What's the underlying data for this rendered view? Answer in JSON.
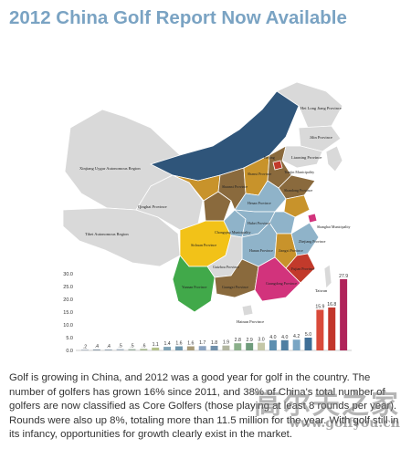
{
  "article": {
    "title": "2012 China Golf Report Now Available",
    "body": "Golf is growing in China, and 2012 was a good year for golf in the country. The number of golfers has grown 16% since 2011, and 38% of China's total number of golfers are now classified as Core Golfers (those playing at least 8 rounds per year). Rounds were also up 8%, totaling more than 11.5 million for the year. With golf still in its infancy, opportunities for growth clearly exist in the market."
  },
  "map": {
    "labels": {
      "heilongjiang": "Hei Long Jiang Province",
      "jilin": "Jilin Province",
      "liaoning": "Liaoning Province",
      "xinjiang": "Xinjiang Uygur Autonomous Region",
      "tibet": "Tibet Autonomous Region",
      "qinghai": "Qinghai Province",
      "beijing": "Beijing",
      "tianjin": "Tianjin Municipality",
      "shaanxi": "Shaanxi Province",
      "shanxi": "Shanxi Province",
      "shandong": "Shandong Province",
      "henan": "Henan Province",
      "shanghai": "Shanghai Municipality",
      "sichuan": "Sichuan Province",
      "chongqing": "Chongqing Municipality",
      "hubei": "Hubei Province",
      "hunan": "Hunan Province",
      "guizhou": "Guizhou Province",
      "yunnan": "Yunnan Province",
      "jiangxi": "Jiangxi Province",
      "fujian": "Fujian Province",
      "zhejiang": "Zhejiang Province",
      "guangxi": "Guangxi Province",
      "guangdong": "Guangdong Province",
      "taiwan": "Taiwan",
      "hainan": "Hainan Province"
    },
    "colors": {
      "land": "#d9d9d9",
      "northeast": "#2f557a",
      "north": "#c8932b",
      "central": "#8a6a3d",
      "southwest": "#f2c218",
      "south": "#41a94a",
      "guangdong": "#d2337c",
      "southeast": "#c23a2b",
      "coast": "#8fb3c9"
    }
  },
  "chart_data": {
    "type": "bar",
    "ylim": [
      0,
      30
    ],
    "yticks": [
      "0.0",
      "5.0",
      "10.0",
      "15.0",
      "20.0",
      "25.0",
      "30.0"
    ],
    "values": [
      0.2,
      0.4,
      0.4,
      0.5,
      0.5,
      0.6,
      1.1,
      1.4,
      1.6,
      1.6,
      1.7,
      1.8,
      1.9,
      2.8,
      2.9,
      3.0,
      4.0,
      4.0,
      4.2,
      5.0,
      15.9,
      16.8,
      27.9
    ],
    "value_labels": [
      ".2",
      ".4",
      ".4",
      ".5",
      ".5",
      ".6",
      "1.1",
      "1.4",
      "1.6",
      "1.6",
      "1.7",
      "1.8",
      "1.9",
      "2.8",
      "2.9",
      "3.0",
      "4.0",
      "4.0",
      "4.2",
      "5.0",
      "15.9",
      "16.8",
      "27.9"
    ],
    "colors": [
      "#7c8d9d",
      "#8c9cab",
      "#9aa9b6",
      "#a5b3bf",
      "#9cb0a0",
      "#a5b88f",
      "#b4c28a",
      "#7fa3b5",
      "#6e95ab",
      "#a79a78",
      "#8aa2c0",
      "#6f8faa",
      "#b2b6a0",
      "#8bb08b",
      "#6f9c7c",
      "#c4c7a7",
      "#5d8fb0",
      "#4f7fa2",
      "#7aa6c4",
      "#3f6f97",
      "#d94a3a",
      "#c2362b",
      "#b0245a"
    ]
  },
  "watermark": {
    "text_cn": "高尔夫之家",
    "url": "www.golfyou.cn"
  }
}
